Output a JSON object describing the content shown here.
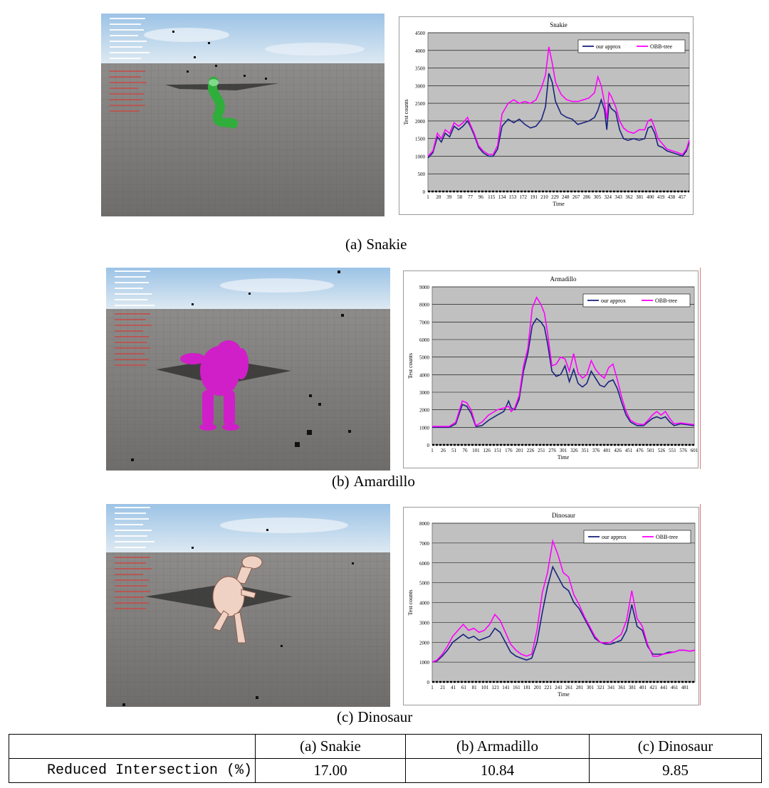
{
  "panels": [
    {
      "caption_label": "(a)",
      "caption_name": "Snakie",
      "object_color": "#2fae3c",
      "chart_data": {
        "type": "line",
        "title": "Snakie",
        "xlabel": "Time",
        "ylabel": "Test counts",
        "ylim": [
          0,
          4500
        ],
        "yticks": [
          0,
          500,
          1000,
          1500,
          2000,
          2500,
          3000,
          3500,
          4000,
          4500
        ],
        "xlim": [
          1,
          470
        ],
        "xticks": [
          1,
          20,
          39,
          58,
          77,
          96,
          115,
          134,
          153,
          172,
          191,
          210,
          229,
          248,
          267,
          286,
          305,
          324,
          343,
          362,
          381,
          400,
          419,
          438,
          457
        ],
        "grid": true,
        "legend": "top-right",
        "series": [
          {
            "name": "our approx",
            "color": "#1a237e",
            "x": [
              1,
              10,
              18,
              25,
              32,
              40,
              48,
              56,
              64,
              72,
              77,
              84,
              92,
              100,
              110,
              118,
              126,
              134,
              145,
              155,
              165,
              175,
              185,
              195,
              205,
              212,
              218,
              224,
              230,
              240,
              250,
              260,
              270,
              280,
              290,
              300,
              306,
              312,
              318,
              322,
              326,
              330,
              338,
              345,
              352,
              360,
              370,
              380,
              390,
              396,
              402,
              408,
              414,
              422,
              430,
              440,
              450,
              458,
              465,
              470
            ],
            "y": [
              950,
              1100,
              1550,
              1400,
              1650,
              1550,
              1850,
              1750,
              1850,
              2000,
              1850,
              1600,
              1250,
              1100,
              1000,
              1000,
              1200,
              1850,
              2050,
              1950,
              2050,
              1900,
              1800,
              1850,
              2050,
              2400,
              3350,
              3100,
              2550,
              2200,
              2100,
              2050,
              1900,
              1950,
              2000,
              2100,
              2300,
              2600,
              2300,
              1750,
              2500,
              2350,
              2250,
              1750,
              1500,
              1450,
              1500,
              1450,
              1500,
              1800,
              1850,
              1650,
              1300,
              1250,
              1150,
              1100,
              1050,
              1000,
              1150,
              1400
            ]
          },
          {
            "name": "OBB-tree",
            "color": "#ff00ff",
            "x": [
              1,
              10,
              18,
              25,
              32,
              40,
              48,
              56,
              64,
              72,
              77,
              84,
              92,
              100,
              110,
              118,
              126,
              134,
              145,
              155,
              165,
              175,
              185,
              195,
              205,
              212,
              218,
              224,
              230,
              240,
              250,
              260,
              270,
              280,
              290,
              300,
              306,
              312,
              318,
              322,
              326,
              330,
              338,
              345,
              352,
              360,
              370,
              380,
              390,
              396,
              402,
              408,
              414,
              422,
              430,
              440,
              450,
              458,
              465,
              470
            ],
            "y": [
              1000,
              1150,
              1650,
              1500,
              1750,
              1650,
              1950,
              1850,
              1950,
              2100,
              1900,
              1650,
              1300,
              1150,
              1050,
              1050,
              1300,
              2200,
              2500,
              2600,
              2500,
              2550,
              2500,
              2600,
              2950,
              3300,
              4100,
              3650,
              3100,
              2750,
              2600,
              2550,
              2550,
              2600,
              2650,
              2800,
              3250,
              3000,
              2500,
              2050,
              2800,
              2700,
              2400,
              2000,
              1800,
              1700,
              1650,
              1750,
              1750,
              2000,
              2050,
              1800,
              1500,
              1350,
              1200,
              1150,
              1100,
              1050,
              1200,
              1450
            ]
          }
        ]
      }
    },
    {
      "caption_label": "(b)",
      "caption_name": "Amardillo",
      "object_color": "#d01fc8",
      "chart_data": {
        "type": "line",
        "title": "Armadillo",
        "xlabel": "Time",
        "ylabel": "Test counts",
        "ylim": [
          0,
          9000
        ],
        "yticks": [
          0,
          1000,
          2000,
          3000,
          4000,
          5000,
          6000,
          7000,
          8000,
          9000
        ],
        "xlim": [
          1,
          601
        ],
        "xticks": [
          1,
          26,
          51,
          76,
          101,
          126,
          151,
          176,
          201,
          226,
          251,
          276,
          301,
          326,
          351,
          376,
          401,
          426,
          451,
          476,
          501,
          526,
          551,
          576,
          601
        ],
        "grid": true,
        "legend": "top-right",
        "series": [
          {
            "name": "our approx",
            "color": "#1a237e",
            "x": [
              1,
              20,
              40,
              55,
              70,
              80,
              90,
              101,
              115,
              130,
              150,
              165,
              176,
              182,
              190,
              200,
              210,
              220,
              230,
              240,
              250,
              258,
              265,
              275,
              285,
              295,
              305,
              315,
              325,
              335,
              345,
              355,
              365,
              375,
              385,
              395,
              405,
              415,
              425,
              435,
              445,
              455,
              470,
              485,
              495,
              505,
              515,
              525,
              535,
              545,
              555,
              570,
              585,
              601
            ],
            "y": [
              1000,
              1000,
              1000,
              1200,
              2300,
              2200,
              1800,
              1050,
              1100,
              1400,
              1700,
              1900,
              2500,
              2100,
              2000,
              2600,
              4200,
              5200,
              6800,
              7200,
              7000,
              6700,
              5800,
              4200,
              3900,
              4000,
              4500,
              3600,
              4300,
              3500,
              3300,
              3500,
              4200,
              3800,
              3400,
              3300,
              3600,
              3700,
              3200,
              2400,
              1700,
              1300,
              1100,
              1100,
              1300,
              1500,
              1600,
              1500,
              1600,
              1300,
              1100,
              1200,
              1150,
              1100
            ]
          },
          {
            "name": "OBB-tree",
            "color": "#ff00ff",
            "x": [
              1,
              20,
              40,
              55,
              70,
              80,
              90,
              101,
              115,
              130,
              150,
              165,
              176,
              182,
              190,
              200,
              210,
              220,
              230,
              240,
              250,
              258,
              265,
              275,
              285,
              295,
              305,
              315,
              325,
              335,
              345,
              355,
              365,
              375,
              385,
              395,
              405,
              415,
              425,
              435,
              445,
              455,
              470,
              485,
              495,
              505,
              515,
              525,
              535,
              545,
              555,
              570,
              585,
              601
            ],
            "y": [
              1050,
              1050,
              1050,
              1300,
              2500,
              2400,
              2000,
              1100,
              1300,
              1700,
              2000,
              2100,
              2200,
              1900,
              2100,
              2800,
              4500,
              5500,
              7800,
              8400,
              8000,
              7500,
              6400,
              4500,
              4600,
              5000,
              4900,
              4200,
              5200,
              4100,
              3800,
              4000,
              4800,
              4300,
              4000,
              3800,
              4400,
              4600,
              3700,
              2700,
              1900,
              1400,
              1200,
              1150,
              1400,
              1700,
              1900,
              1700,
              1900,
              1500,
              1200,
              1250,
              1200,
              1150
            ]
          }
        ]
      }
    },
    {
      "caption_label": "(c)",
      "caption_name": "Dinosaur",
      "object_color": "#efd2c4",
      "chart_data": {
        "type": "line",
        "title": "Dinosaur",
        "xlabel": "Time",
        "ylabel": "Test counts",
        "ylim": [
          0,
          8000
        ],
        "yticks": [
          0,
          1000,
          2000,
          3000,
          4000,
          5000,
          6000,
          7000,
          8000
        ],
        "xlim": [
          1,
          500
        ],
        "xticks": [
          1,
          21,
          41,
          61,
          81,
          101,
          121,
          141,
          161,
          181,
          201,
          221,
          241,
          261,
          281,
          301,
          321,
          341,
          361,
          381,
          401,
          421,
          441,
          461,
          481
        ],
        "grid": true,
        "legend": "top-right",
        "series": [
          {
            "name": "our approx",
            "color": "#1a237e",
            "x": [
              1,
              10,
              20,
              30,
              40,
              50,
              60,
              70,
              80,
              90,
              100,
              110,
              120,
              130,
              140,
              150,
              160,
              170,
              180,
              190,
              200,
              210,
              220,
              230,
              240,
              250,
              260,
              270,
              280,
              290,
              300,
              310,
              320,
              330,
              340,
              350,
              360,
              370,
              380,
              390,
              400,
              410,
              420,
              430,
              440,
              450,
              460,
              470,
              480,
              490,
              500
            ],
            "y": [
              1000,
              1050,
              1300,
              1600,
              2000,
              2200,
              2400,
              2200,
              2300,
              2100,
              2200,
              2300,
              2700,
              2500,
              2000,
              1500,
              1300,
              1200,
              1100,
              1200,
              2000,
              3500,
              4800,
              5800,
              5300,
              4800,
              4600,
              4000,
              3700,
              3200,
              2700,
              2200,
              2000,
              1900,
              1900,
              2000,
              2100,
              2600,
              3900,
              2800,
              2600,
              1800,
              1400,
              1400,
              1400,
              1500,
              1500,
              1600,
              1600,
              1550,
              1600
            ]
          },
          {
            "name": "OBB-tree",
            "color": "#ff00ff",
            "x": [
              1,
              10,
              20,
              30,
              40,
              50,
              60,
              70,
              80,
              90,
              100,
              110,
              120,
              130,
              140,
              150,
              160,
              170,
              180,
              190,
              200,
              210,
              220,
              230,
              240,
              250,
              260,
              270,
              280,
              290,
              300,
              310,
              320,
              330,
              340,
              350,
              360,
              370,
              380,
              390,
              400,
              410,
              420,
              430,
              440,
              450,
              460,
              470,
              480,
              490,
              500
            ],
            "y": [
              1000,
              1100,
              1400,
              1800,
              2300,
              2600,
              2900,
              2600,
              2700,
              2500,
              2600,
              2900,
              3400,
              3100,
              2500,
              1900,
              1600,
              1400,
              1300,
              1400,
              2600,
              4500,
              5500,
              7100,
              6400,
              5500,
              5300,
              4400,
              3900,
              3300,
              2800,
              2300,
              2000,
              1950,
              2000,
              2200,
              2400,
              3100,
              4600,
              3200,
              2800,
              1900,
              1300,
              1300,
              1400,
              1450,
              1500,
              1600,
              1600,
              1550,
              1600
            ]
          }
        ]
      }
    }
  ],
  "table": {
    "headers": [
      "",
      "(a) Snakie",
      "(b) Armadillo",
      "(c) Dinosaur"
    ],
    "row_label": "Reduced Intersection (%)",
    "values": [
      "17.00",
      "10.84",
      "9.85"
    ]
  }
}
